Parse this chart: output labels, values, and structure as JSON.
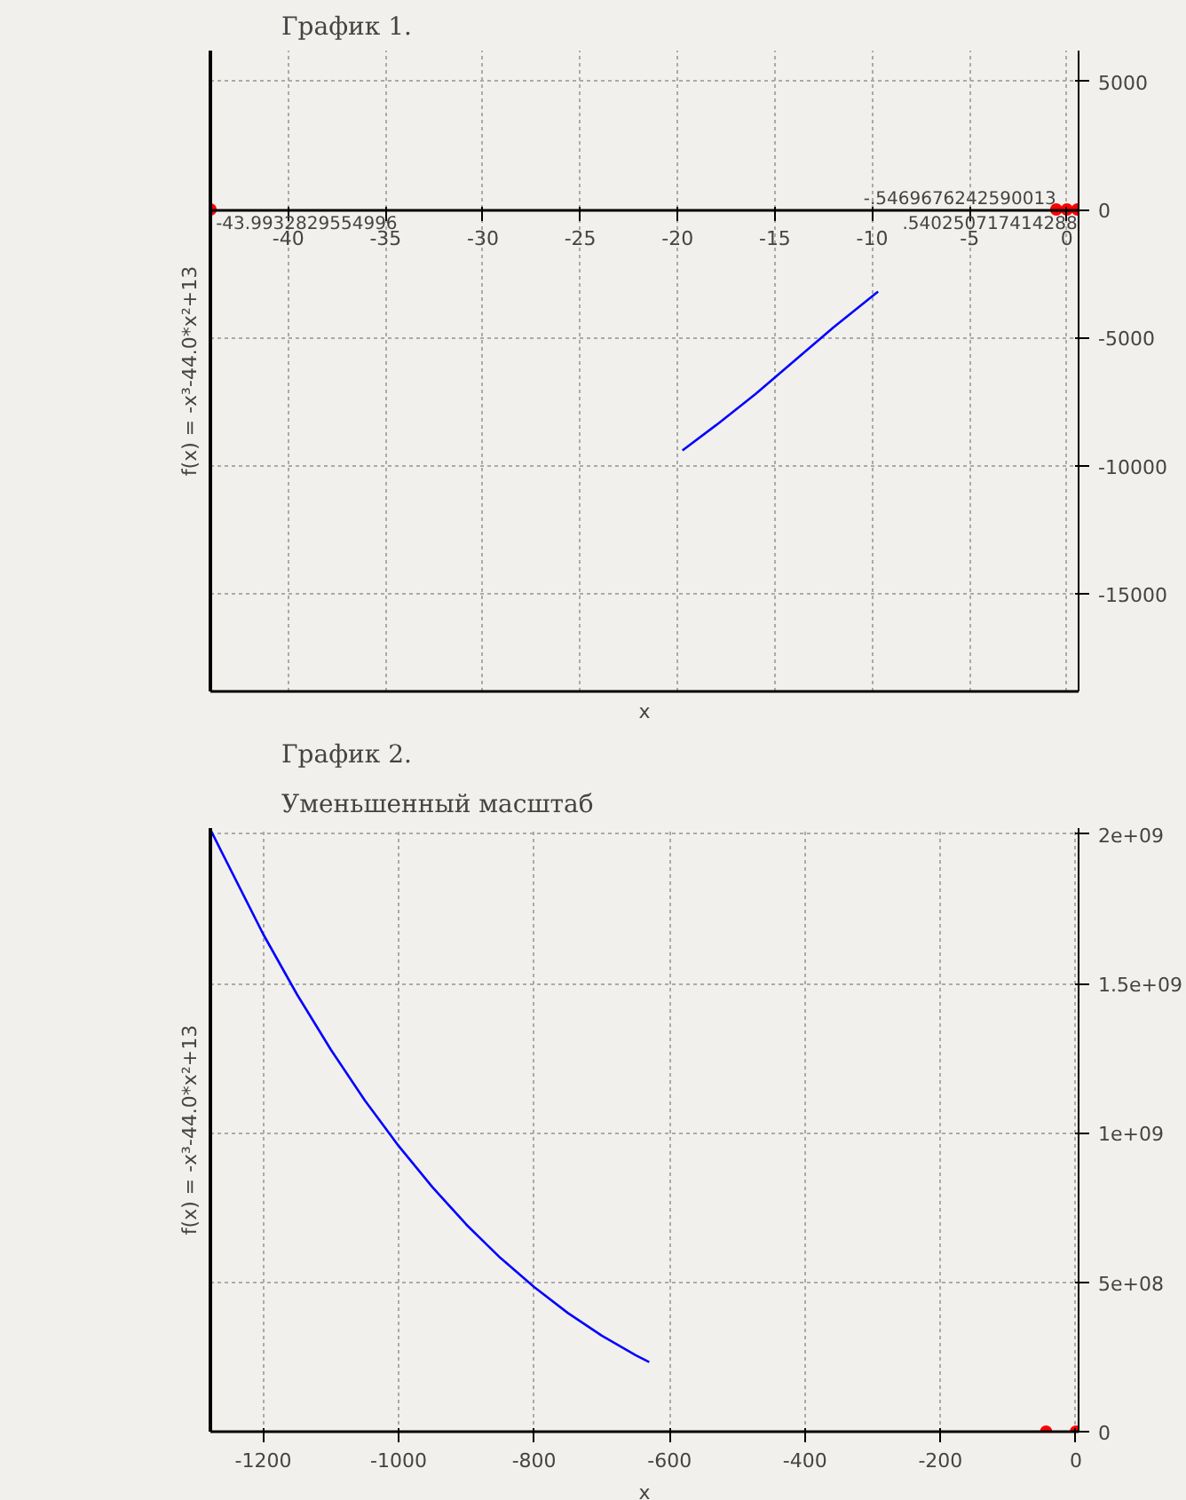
{
  "chart_data": [
    {
      "type": "line",
      "title": "График 1.",
      "xlabel": "x",
      "ylabel": "f(x) = -x³-44.0*x²+13",
      "xlim": [
        -44.0,
        0.6
      ],
      "ylim": [
        -18800,
        6200
      ],
      "xticks": [
        -40,
        -35,
        -30,
        -25,
        -20,
        -15,
        -10,
        -5,
        0
      ],
      "yticks": [
        -15000,
        -10000,
        -5000,
        0,
        5000
      ],
      "grid": true,
      "series": [
        {
          "color": "#0000ff",
          "x": [
            -19.75,
            -18,
            -16,
            -14,
            -12,
            -9.7
          ],
          "values": [
            -9400,
            -8400,
            -7200,
            -5900,
            -4600,
            -3200
          ]
        },
        {
          "type": "scatter",
          "marker": "circle",
          "color": "#ff0000",
          "x": [
            -43.9932829554996,
            -0.5469676242590013,
            0,
            0.540250717414288
          ],
          "values": [
            0,
            0,
            0,
            0
          ]
        }
      ],
      "annotations": [
        {
          "text": "-43.9932829554996",
          "x": -43.9932829554996,
          "y": 0
        },
        {
          "text": "-.5469676242590013",
          "x": -0.5469676242590013,
          "y": 0
        },
        {
          "text": ".540250717414288",
          "x": 0.540250717414288,
          "y": 0
        }
      ]
    },
    {
      "type": "line",
      "title": "График 2.",
      "subtitle": "Уменьшенный масштаб",
      "xlabel": "x",
      "ylabel": "f(x) = -x³-44.0*x²+13",
      "xlim": [
        -1278,
        4
      ],
      "ylim": [
        0,
        2020000000
      ],
      "xticks": [
        -1200,
        -1000,
        -800,
        -600,
        -400,
        -200,
        0
      ],
      "yticks": [
        0,
        {
          "value": 500000000,
          "label": "5e+08"
        },
        {
          "value": 1000000000,
          "label": "1e+09"
        },
        {
          "value": 1500000000,
          "label": "1.5e+09"
        },
        {
          "value": 2000000000,
          "label": "2e+09"
        }
      ],
      "grid": true,
      "series": [
        {
          "color": "#0000ff",
          "x": [
            -1278,
            -1200,
            -1150,
            -1100,
            -1050,
            -1000,
            -950,
            -900,
            -850,
            -800,
            -750,
            -700,
            -650,
            -630
          ],
          "values": [
            2015000000,
            1665000000,
            1463000000,
            1278000000,
            1109000000,
            956000000,
            818000000,
            693000000,
            582000000,
            484000000,
            397000000,
            321000000,
            256000000,
            233000000
          ]
        },
        {
          "type": "scatter",
          "marker": "circle",
          "color": "#ff0000",
          "x": [
            -44,
            0
          ],
          "values": [
            0,
            0
          ]
        }
      ]
    }
  ]
}
